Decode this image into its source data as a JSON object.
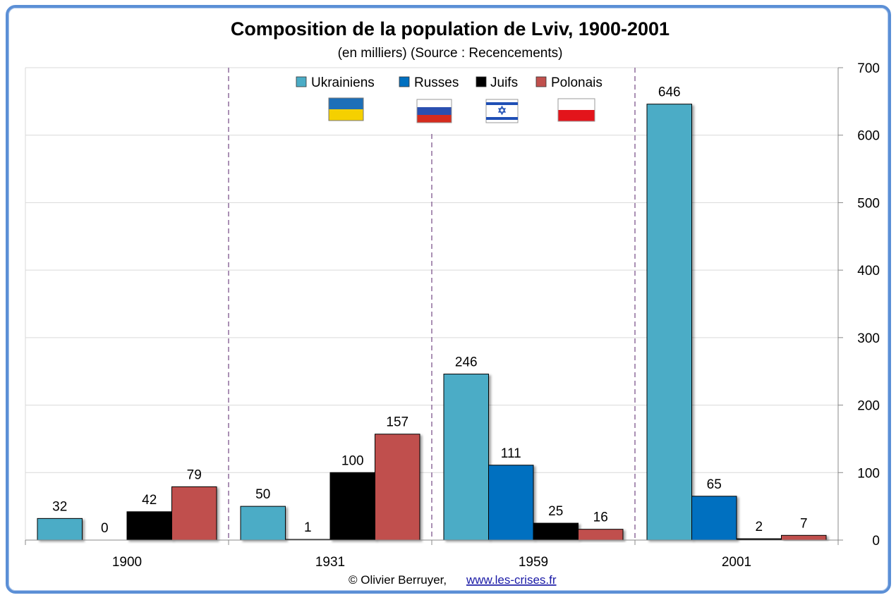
{
  "chart_data": {
    "type": "bar",
    "title": "Composition de la population de Lviv, 1900-2001",
    "subtitle": "(en milliers) (Source : Recencements)",
    "categories": [
      "1900",
      "1931",
      "1959",
      "2001"
    ],
    "series": [
      {
        "name": "Ukrainiens",
        "color": "#4bacc6",
        "values": [
          32,
          50,
          246,
          646
        ]
      },
      {
        "name": "Russes",
        "color": "#0070c0",
        "values": [
          0,
          1,
          111,
          65
        ]
      },
      {
        "name": "Juifs",
        "color": "#000000",
        "values": [
          42,
          100,
          25,
          2
        ]
      },
      {
        "name": "Polonais",
        "color": "#c0504d",
        "values": [
          79,
          157,
          16,
          7
        ]
      }
    ],
    "ylim": [
      0,
      700
    ],
    "yticks": [
      "0",
      "100",
      "200",
      "300",
      "400",
      "500",
      "600",
      "700"
    ],
    "yaxis_side": "right",
    "grid": true,
    "legend_position": "top-center",
    "legend_flags": [
      "ukraine-flag-icon",
      "russia-flag-icon",
      "israel-flag-icon",
      "poland-flag-icon"
    ]
  },
  "credit": {
    "author": "© Olivier Berruyer,",
    "link": "www.les-crises.fr"
  },
  "colors": {
    "frame": "#5b8fd6",
    "separator": "#8e6c9c",
    "grid": "#d9d9d9"
  }
}
